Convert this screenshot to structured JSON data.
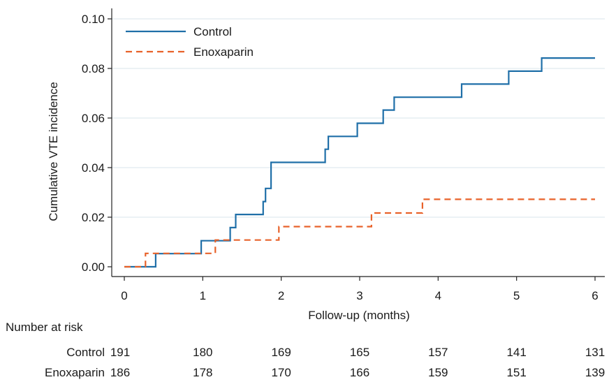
{
  "chart_data": {
    "type": "line",
    "subtype": "step",
    "xlabel": "Follow-up (months)",
    "ylabel": "Cumulative VTE incidence",
    "xlim": [
      0,
      6
    ],
    "ylim": [
      0,
      0.1
    ],
    "xticks": [
      0,
      1,
      2,
      3,
      4,
      5,
      6
    ],
    "xtick_labels": [
      "0",
      "1",
      "2",
      "3",
      "4",
      "5",
      "6"
    ],
    "yticks": [
      0,
      0.02,
      0.04,
      0.06,
      0.08,
      0.1
    ],
    "ytick_labels": [
      "0.00",
      "0.02",
      "0.04",
      "0.06",
      "0.08",
      "0.10"
    ],
    "grid": "horizontal",
    "legend_position": "top-left",
    "series": [
      {
        "name": "Control",
        "color": "#1f6fa8",
        "dash": "solid",
        "x": [
          0,
          0.4,
          0.98,
          1.35,
          1.42,
          1.77,
          1.8,
          1.87,
          2.56,
          2.6,
          2.97,
          3.3,
          3.44,
          4.3,
          4.9,
          5.32,
          6.0
        ],
        "y": [
          0,
          0.0053,
          0.0105,
          0.0158,
          0.0211,
          0.0263,
          0.0316,
          0.0421,
          0.0474,
          0.0526,
          0.0579,
          0.0632,
          0.0684,
          0.0737,
          0.0789,
          0.0842,
          0.0842
        ]
      },
      {
        "name": "Enoxaparin",
        "color": "#e8622a",
        "dash": "dashed",
        "x": [
          0,
          0.27,
          1.16,
          1.97,
          3.15,
          3.8,
          6.0
        ],
        "y": [
          0,
          0.0054,
          0.0108,
          0.0162,
          0.0217,
          0.0272,
          0.0272
        ]
      }
    ]
  },
  "risk_table": {
    "title": "Number at risk",
    "times": [
      0,
      1,
      2,
      3,
      4,
      5,
      6
    ],
    "rows": [
      {
        "label": "Control",
        "values": [
          "191",
          "180",
          "169",
          "165",
          "157",
          "141",
          "131"
        ]
      },
      {
        "label": "Enoxaparin",
        "values": [
          "186",
          "178",
          "170",
          "166",
          "159",
          "151",
          "139"
        ]
      }
    ]
  }
}
